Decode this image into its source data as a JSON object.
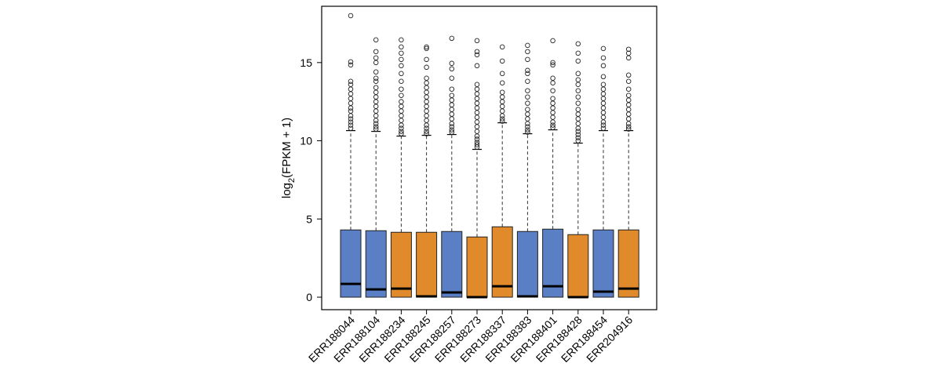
{
  "chart_data": {
    "type": "boxplot",
    "title": "",
    "xlabel": "",
    "ylabel": {
      "prefix": "log",
      "subscript": "2",
      "suffix": "(FPKM + 1)"
    },
    "ylim": [
      -0.8,
      18.6
    ],
    "yticks": [
      0,
      5,
      10,
      15
    ],
    "colors": {
      "blue": "#5b7fc4",
      "orange": "#e08a2c"
    },
    "categories": [
      "ERR188044",
      "ERR188104",
      "ERR188234",
      "ERR188245",
      "ERR188257",
      "ERR188273",
      "ERR188337",
      "ERR188383",
      "ERR188401",
      "ERR188428",
      "ERR188454",
      "ERR204916"
    ],
    "series": [
      {
        "name": "ERR188044",
        "color": "blue",
        "q1": 0,
        "median": 0.85,
        "q3": 4.3,
        "whisker_high": 10.65,
        "outliers": [
          18.0,
          15.05,
          14.85,
          13.8,
          13.6,
          13.3,
          13.0,
          12.7,
          12.4,
          12.1,
          11.9,
          11.6,
          11.4,
          11.2,
          11.0,
          10.8
        ]
      },
      {
        "name": "ERR188104",
        "color": "blue",
        "q1": 0,
        "median": 0.5,
        "q3": 4.25,
        "whisker_high": 10.6,
        "outliers": [
          16.45,
          15.7,
          15.3,
          15.0,
          14.4,
          14.0,
          13.8,
          13.4,
          13.1,
          12.8,
          12.5,
          12.2,
          11.9,
          11.6,
          11.3,
          11.1,
          10.9,
          10.75
        ]
      },
      {
        "name": "ERR188234",
        "color": "orange",
        "q1": 0,
        "median": 0.55,
        "q3": 4.15,
        "whisker_high": 10.3,
        "outliers": [
          16.45,
          16.0,
          15.6,
          15.2,
          14.8,
          14.3,
          13.8,
          13.3,
          12.9,
          12.5,
          12.2,
          11.9,
          11.6,
          11.3,
          11.0,
          10.8,
          10.6,
          10.45
        ]
      },
      {
        "name": "ERR188245",
        "color": "orange",
        "q1": 0,
        "median": 0.05,
        "q3": 4.15,
        "whisker_high": 10.35,
        "outliers": [
          16.0,
          15.9,
          15.2,
          14.7,
          14.0,
          13.7,
          13.4,
          13.1,
          12.8,
          12.5,
          12.2,
          11.9,
          11.6,
          11.3,
          11.0,
          10.8,
          10.6,
          10.45
        ]
      },
      {
        "name": "ERR188257",
        "color": "blue",
        "q1": 0,
        "median": 0.3,
        "q3": 4.2,
        "whisker_high": 10.4,
        "outliers": [
          16.55,
          14.95,
          14.6,
          14.0,
          13.3,
          12.9,
          12.6,
          12.3,
          12.0,
          11.7,
          11.4,
          11.1,
          10.9,
          10.7,
          10.55
        ]
      },
      {
        "name": "ERR188273",
        "color": "orange",
        "q1": 0,
        "median": 0.0,
        "q3": 3.85,
        "whisker_high": 9.45,
        "outliers": [
          16.4,
          15.7,
          15.5,
          14.8,
          13.6,
          13.3,
          13.0,
          12.7,
          12.4,
          12.1,
          11.8,
          11.5,
          11.2,
          10.9,
          10.6,
          10.3,
          10.1,
          9.9,
          9.75,
          9.6
        ]
      },
      {
        "name": "ERR188337",
        "color": "orange",
        "q1": 0,
        "median": 0.7,
        "q3": 4.5,
        "whisker_high": 11.15,
        "outliers": [
          16.0,
          15.1,
          14.3,
          13.7,
          13.1,
          12.8,
          12.5,
          12.2,
          11.9,
          11.6,
          11.4,
          11.25
        ]
      },
      {
        "name": "ERR188383",
        "color": "blue",
        "q1": 0,
        "median": 0.05,
        "q3": 4.2,
        "whisker_high": 10.45,
        "outliers": [
          16.1,
          15.7,
          15.2,
          14.5,
          14.3,
          13.8,
          13.2,
          12.8,
          12.4,
          12.0,
          11.7,
          11.4,
          11.1,
          10.9,
          10.7,
          10.55
        ]
      },
      {
        "name": "ERR188401",
        "color": "blue",
        "q1": 0,
        "median": 0.7,
        "q3": 4.35,
        "whisker_high": 10.7,
        "outliers": [
          16.4,
          15.0,
          14.85,
          14.0,
          13.7,
          13.2,
          12.7,
          12.4,
          12.1,
          11.8,
          11.5,
          11.2,
          11.0,
          10.85
        ]
      },
      {
        "name": "ERR188428",
        "color": "orange",
        "q1": 0,
        "median": 0.0,
        "q3": 4.0,
        "whisker_high": 9.85,
        "outliers": [
          16.2,
          15.6,
          15.1,
          14.3,
          13.9,
          13.6,
          13.2,
          12.8,
          12.4,
          12.0,
          11.7,
          11.4,
          11.1,
          10.8,
          10.6,
          10.4,
          10.2,
          10.0
        ]
      },
      {
        "name": "ERR188454",
        "color": "blue",
        "q1": 0,
        "median": 0.35,
        "q3": 4.3,
        "whisker_high": 10.65,
        "outliers": [
          15.9,
          15.3,
          14.8,
          14.1,
          13.6,
          13.3,
          13.0,
          12.7,
          12.4,
          12.1,
          11.8,
          11.5,
          11.2,
          11.0,
          10.8
        ]
      },
      {
        "name": "ERR204916",
        "color": "orange",
        "q1": 0,
        "median": 0.55,
        "q3": 4.3,
        "whisker_high": 10.65,
        "outliers": [
          15.85,
          15.6,
          15.3,
          14.2,
          13.8,
          13.3,
          12.9,
          12.6,
          12.3,
          12.0,
          11.7,
          11.4,
          11.1,
          10.9,
          10.75
        ]
      }
    ]
  }
}
